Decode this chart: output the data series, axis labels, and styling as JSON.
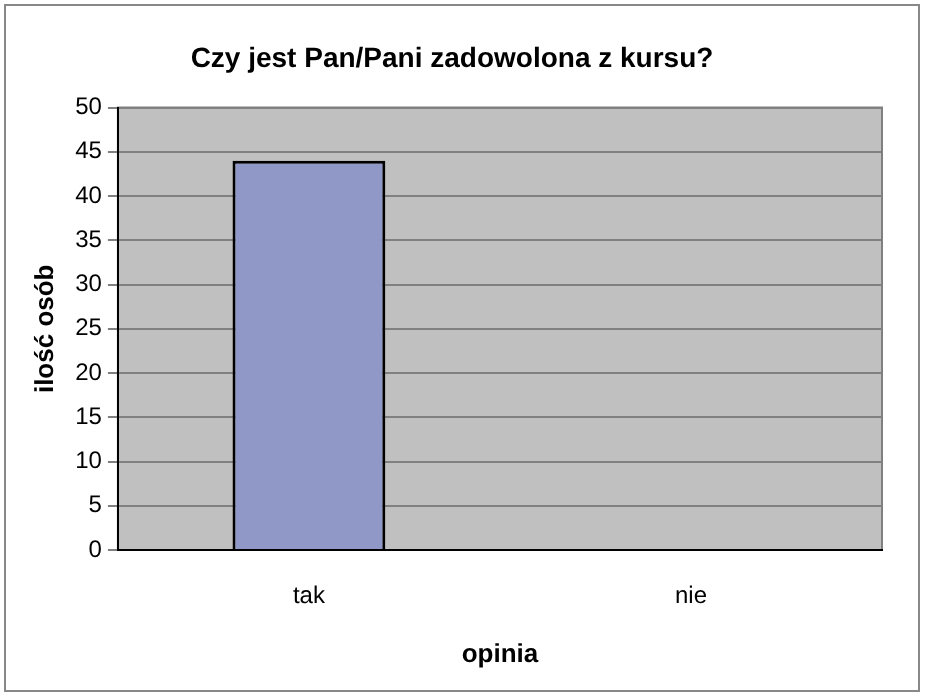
{
  "chart_data": {
    "type": "bar",
    "title": "Czy jest Pan/Pani zadowolona z kursu?",
    "xlabel": "opinia",
    "ylabel": "ilość osób",
    "categories": [
      "tak",
      "nie"
    ],
    "values": [
      44,
      0
    ],
    "color": "#9098c8",
    "ylim": [
      0,
      50
    ],
    "yticks": [
      0,
      5,
      10,
      15,
      20,
      25,
      30,
      35,
      40,
      45,
      50
    ],
    "grid": "y",
    "legend": false
  }
}
